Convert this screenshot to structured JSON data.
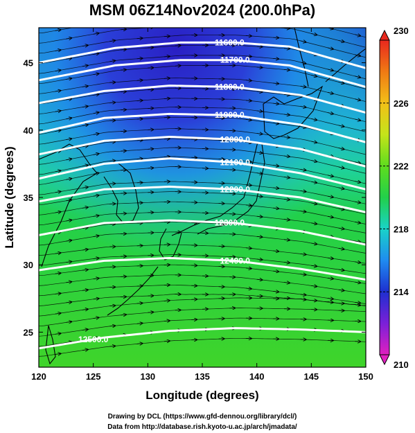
{
  "chart_data": {
    "type": "heatmap",
    "title": "MSM 06Z14Nov2024 (200.0hPa)",
    "xlabel": "Longitude (degrees)",
    "ylabel": "Latitude  (degrees)",
    "xlim": [
      120,
      150
    ],
    "ylim": [
      22.4,
      47.6
    ],
    "x_ticks": [
      120,
      125,
      130,
      135,
      140,
      145,
      150
    ],
    "y_ticks": [
      25,
      30,
      35,
      40,
      45
    ],
    "colorbar": {
      "range": [
        210,
        230
      ],
      "ticks": [
        210,
        214,
        218,
        222,
        226,
        230
      ],
      "colors": [
        "#e020c0",
        "#7a20d8",
        "#1e2fd0",
        "#1f8cf0",
        "#19d3c8",
        "#22d04a",
        "#5fdc1e",
        "#c4e41a",
        "#f2c018",
        "#f07a14",
        "#e8281e"
      ]
    },
    "contours": [
      {
        "label": "11600.0",
        "lat_at_lon": [
          [
            120,
            45.0
          ],
          [
            127,
            46.1
          ],
          [
            133,
            46.5
          ],
          [
            138,
            46.5
          ],
          [
            143,
            46.2
          ],
          [
            150,
            44.6
          ]
        ]
      },
      {
        "label": "11700.0",
        "lat_at_lon": [
          [
            120,
            43.7
          ],
          [
            127,
            44.8
          ],
          [
            133,
            45.2
          ],
          [
            138,
            45.2
          ],
          [
            143,
            44.8
          ],
          [
            150,
            43.2
          ]
        ]
      },
      {
        "label": "11800.0",
        "lat_at_lon": [
          [
            120,
            42.0
          ],
          [
            126,
            42.9
          ],
          [
            132,
            43.3
          ],
          [
            138,
            43.2
          ],
          [
            144,
            42.6
          ],
          [
            150,
            41.3
          ]
        ]
      },
      {
        "label": "11900.0",
        "lat_at_lon": [
          [
            120,
            39.8
          ],
          [
            126,
            40.9
          ],
          [
            132,
            41.2
          ],
          [
            138,
            41.1
          ],
          [
            144,
            40.4
          ],
          [
            150,
            39.1
          ]
        ]
      },
      {
        "label": "12000.0",
        "lat_at_lon": [
          [
            120,
            38.2
          ],
          [
            126,
            39.2
          ],
          [
            132,
            39.5
          ],
          [
            138,
            39.3
          ],
          [
            144,
            38.6
          ],
          [
            150,
            37.3
          ]
        ]
      },
      {
        "label": "12100.0",
        "lat_at_lon": [
          [
            120,
            36.4
          ],
          [
            126,
            37.5
          ],
          [
            132,
            37.9
          ],
          [
            138,
            37.6
          ],
          [
            144,
            36.8
          ],
          [
            150,
            35.6
          ]
        ]
      },
      {
        "label": "12200.0",
        "lat_at_lon": [
          [
            120,
            34.7
          ],
          [
            126,
            35.6
          ],
          [
            132,
            35.8
          ],
          [
            138,
            35.6
          ],
          [
            144,
            35.0
          ],
          [
            150,
            33.9
          ]
        ]
      },
      {
        "label": "12300.0",
        "lat_at_lon": [
          [
            120,
            32.2
          ],
          [
            126,
            33.1
          ],
          [
            132,
            33.3
          ],
          [
            138,
            33.1
          ],
          [
            144,
            32.5
          ],
          [
            150,
            31.5
          ]
        ]
      },
      {
        "label": "12400.0",
        "lat_at_lon": [
          [
            120,
            29.6
          ],
          [
            126,
            30.3
          ],
          [
            132,
            30.5
          ],
          [
            138,
            30.3
          ],
          [
            144,
            29.7
          ],
          [
            150,
            28.9
          ]
        ]
      },
      {
        "label": "12500.0",
        "lat_at_lon": [
          [
            120,
            23.8
          ],
          [
            126,
            24.6
          ],
          [
            132,
            25.1
          ],
          [
            138,
            25.3
          ],
          [
            144,
            25.2
          ],
          [
            150,
            25.0
          ]
        ]
      }
    ],
    "contour_label_positions": [
      {
        "label": "11600.0",
        "lon": 137.5
      },
      {
        "label": "11700.0",
        "lon": 138.0
      },
      {
        "label": "11800.0",
        "lon": 137.5
      },
      {
        "label": "11900.0",
        "lon": 137.5
      },
      {
        "label": "12000.0",
        "lon": 138.0
      },
      {
        "label": "12100.0",
        "lon": 138.0
      },
      {
        "label": "12200.0",
        "lon": 138.0
      },
      {
        "label": "12300.0",
        "lon": 137.5
      },
      {
        "label": "12400.0",
        "lon": 138.0
      },
      {
        "label": "12500.0",
        "lon": 125.0
      }
    ],
    "grid": false,
    "wind_vectors": "eastward, curving north-east at high latitudes"
  },
  "footer": {
    "line1": "Drawing by DCL (https://www.gfd-dennou.org/library/dcl/)",
    "line2": "Data from http://database.rish.kyoto-u.ac.jp/arch/jmadata/"
  }
}
